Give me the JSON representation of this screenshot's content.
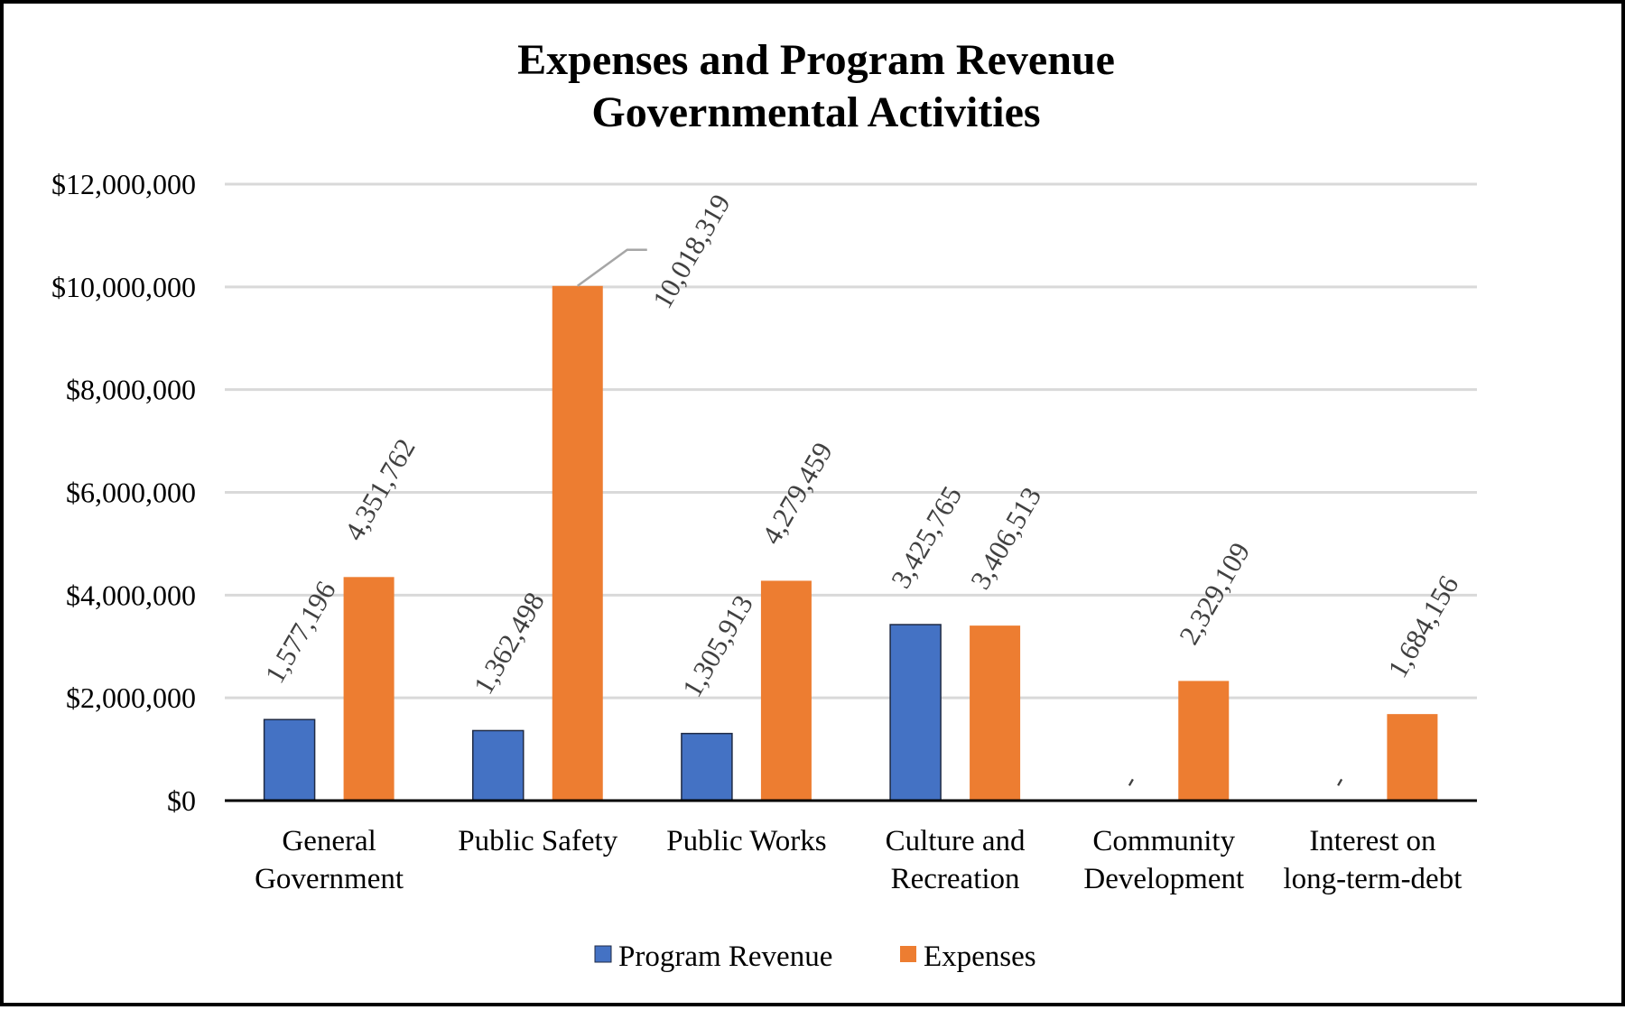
{
  "chart_data": {
    "type": "bar",
    "title": [
      "Expenses and Program Revenue",
      "Governmental Activities"
    ],
    "categories": [
      [
        "General",
        "Government"
      ],
      [
        "Public Safety"
      ],
      [
        "Public Works"
      ],
      [
        "Culture and",
        "Recreation"
      ],
      [
        "Community",
        "Development"
      ],
      [
        "Interest on",
        "long-term-debt"
      ]
    ],
    "series": [
      {
        "name": "Program Revenue",
        "color": "#4472C4",
        "values": [
          1577196,
          1362498,
          1305913,
          3425765,
          0,
          0
        ],
        "labels": [
          "1,577,196",
          "1,362,498",
          "1,305,913",
          "3,425,765",
          "-",
          "-"
        ]
      },
      {
        "name": "Expenses",
        "color": "#ED7D31",
        "values": [
          4351762,
          10018319,
          4279459,
          3406513,
          2329109,
          1684156
        ],
        "labels": [
          "4,351,762",
          "10,018,319",
          "4,279,459",
          "3,406,513",
          "2,329,109",
          "1,684,156"
        ]
      }
    ],
    "ylim": [
      0,
      12000000
    ],
    "yticks": [
      0,
      2000000,
      4000000,
      6000000,
      8000000,
      10000000,
      12000000
    ],
    "ytick_labels": [
      "$0",
      "$2,000,000",
      "$4,000,000",
      "$6,000,000",
      "$8,000,000",
      "$10,000,000",
      "$12,000,000"
    ],
    "grid": true,
    "legend": "bottom",
    "xlabel": "",
    "ylabel": ""
  },
  "colors": {
    "gridline": "#D9D9D9",
    "axis": "#000000",
    "leader": "#A6A6A6"
  }
}
